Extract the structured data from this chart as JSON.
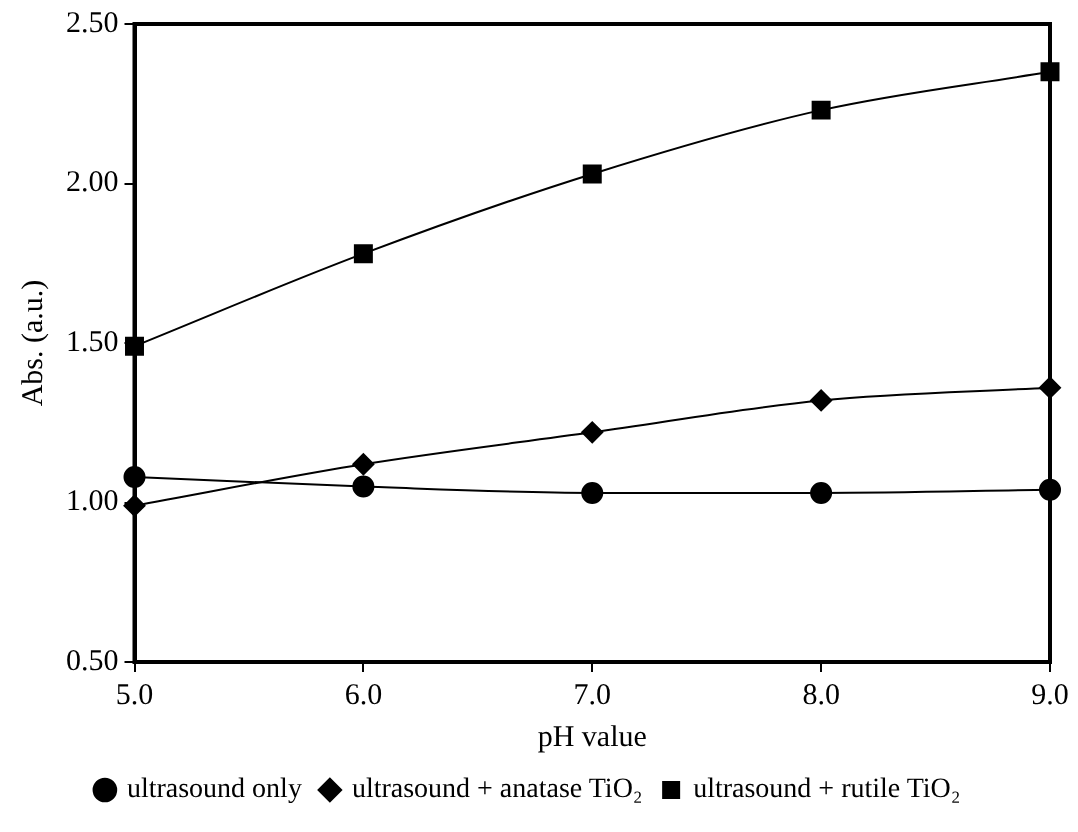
{
  "chart_data": {
    "type": "line",
    "xlabel": "pH value",
    "ylabel": "Abs. (a.u.)",
    "x": [
      5,
      6,
      7,
      8,
      9
    ],
    "xlim": [
      5,
      9
    ],
    "xticks": [
      {
        "value": 5,
        "label": "5.0"
      },
      {
        "value": 6,
        "label": "6.0"
      },
      {
        "value": 7,
        "label": "7.0"
      },
      {
        "value": 8,
        "label": "8.0"
      },
      {
        "value": 9,
        "label": "9.0"
      }
    ],
    "ylim": [
      0.5,
      2.5
    ],
    "yticks": [
      {
        "value": 0.5,
        "label": "0.50"
      },
      {
        "value": 1,
        "label": "1.00"
      },
      {
        "value": 1.5,
        "label": "1.50"
      },
      {
        "value": 2,
        "label": "2.00"
      },
      {
        "value": 2.5,
        "label": "2.50"
      }
    ],
    "grid": false,
    "legend": "bottom",
    "series": [
      {
        "name": "ultrasound only",
        "color": "#000000",
        "marker": "circle",
        "values": [
          1.08,
          1.05,
          1.03,
          1.03,
          1.04
        ]
      },
      {
        "name": "ultrasound + anatase TiO₂",
        "color": "#000000",
        "marker": "diamond",
        "values": [
          0.99,
          1.12,
          1.22,
          1.32,
          1.36
        ]
      },
      {
        "name": "ultrasound + rutile TiO₂",
        "color": "#000000",
        "marker": "square",
        "values": [
          1.49,
          1.78,
          2.03,
          2.23,
          2.35
        ]
      }
    ]
  }
}
